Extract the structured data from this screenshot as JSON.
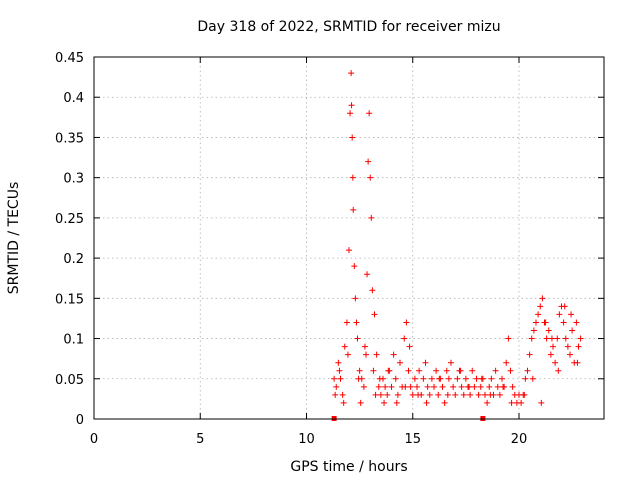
{
  "chart_data": {
    "type": "scatter",
    "title": "Day 318 of 2022, SRMTID for receiver mizu",
    "xlabel": "GPS time / hours",
    "ylabel": "SRMTID / TECUs",
    "xlim": [
      0,
      24
    ],
    "ylim": [
      0,
      0.45
    ],
    "x_ticks": [
      0,
      5,
      10,
      15,
      20
    ],
    "x_tick_labels": [
      "0",
      "5",
      "10",
      "15",
      "20"
    ],
    "y_ticks": [
      0,
      0.05,
      0.1,
      0.15,
      0.2,
      0.25,
      0.3,
      0.35,
      0.4,
      0.45
    ],
    "y_tick_labels": [
      "0",
      "0.05",
      "0.1",
      "0.15",
      "0.2",
      "0.25",
      "0.3",
      "0.35",
      "0.4",
      "0.45"
    ],
    "grid": true,
    "marker": "plus",
    "color": "#ff0000",
    "series": [
      {
        "name": "SRMTID",
        "x": [
          11.3,
          11.4,
          11.5,
          11.6,
          11.7,
          11.8,
          11.9,
          12.0,
          12.05,
          12.1,
          12.12,
          12.15,
          12.18,
          12.2,
          12.25,
          12.3,
          12.35,
          12.4,
          12.5,
          12.6,
          12.7,
          12.8,
          12.85,
          12.9,
          12.95,
          13.0,
          13.05,
          13.1,
          13.2,
          13.3,
          13.4,
          13.5,
          13.6,
          13.7,
          13.8,
          13.9,
          14.0,
          14.1,
          14.2,
          14.3,
          14.4,
          14.5,
          14.6,
          14.7,
          14.8,
          14.9,
          15.0,
          15.1,
          15.2,
          15.3,
          15.4,
          15.5,
          15.6,
          15.7,
          15.8,
          15.9,
          16.0,
          16.1,
          16.2,
          16.3,
          16.4,
          16.5,
          16.6,
          16.7,
          16.8,
          16.9,
          17.0,
          17.1,
          17.2,
          17.3,
          17.4,
          17.5,
          17.6,
          17.7,
          17.8,
          17.9,
          18.0,
          18.1,
          18.2,
          18.3,
          18.4,
          18.5,
          18.6,
          18.7,
          18.8,
          18.9,
          19.0,
          19.1,
          19.2,
          19.3,
          19.4,
          19.5,
          19.6,
          19.7,
          19.8,
          19.9,
          20.0,
          20.1,
          20.2,
          20.3,
          20.4,
          20.5,
          20.6,
          20.7,
          20.8,
          20.9,
          21.0,
          21.1,
          21.2,
          21.3,
          21.4,
          21.5,
          21.6,
          21.7,
          21.8,
          21.9,
          22.0,
          22.1,
          22.2,
          22.3,
          22.4,
          22.5,
          22.6,
          22.7,
          22.8,
          22.9,
          11.35,
          11.55,
          11.75,
          11.95,
          12.45,
          12.55,
          12.75,
          13.15,
          13.25,
          13.45,
          13.65,
          13.85,
          14.25,
          14.65,
          14.85,
          15.25,
          15.65,
          16.25,
          16.65,
          17.25,
          17.65,
          18.25,
          18.65,
          19.25,
          19.65,
          20.25,
          20.65,
          21.05,
          21.25,
          21.55,
          21.85,
          22.15,
          22.45,
          22.75
        ],
        "y": [
          0.05,
          0.04,
          0.07,
          0.05,
          0.03,
          0.09,
          0.12,
          0.21,
          0.38,
          0.43,
          0.39,
          0.35,
          0.3,
          0.26,
          0.19,
          0.15,
          0.12,
          0.1,
          0.06,
          0.05,
          0.04,
          0.08,
          0.18,
          0.32,
          0.38,
          0.3,
          0.25,
          0.16,
          0.13,
          0.08,
          0.04,
          0.03,
          0.05,
          0.04,
          0.03,
          0.06,
          0.04,
          0.08,
          0.05,
          0.03,
          0.07,
          0.04,
          0.1,
          0.12,
          0.06,
          0.04,
          0.03,
          0.05,
          0.04,
          0.06,
          0.03,
          0.05,
          0.07,
          0.04,
          0.03,
          0.05,
          0.04,
          0.06,
          0.03,
          0.05,
          0.04,
          0.02,
          0.06,
          0.05,
          0.07,
          0.04,
          0.03,
          0.05,
          0.06,
          0.04,
          0.03,
          0.05,
          0.04,
          0.03,
          0.06,
          0.04,
          0.05,
          0.03,
          0.04,
          0.05,
          0.03,
          0.02,
          0.04,
          0.05,
          0.03,
          0.06,
          0.04,
          0.03,
          0.05,
          0.04,
          0.07,
          0.1,
          0.06,
          0.04,
          0.03,
          0.02,
          0.03,
          0.02,
          0.03,
          0.05,
          0.06,
          0.08,
          0.1,
          0.11,
          0.12,
          0.13,
          0.14,
          0.15,
          0.12,
          0.1,
          0.11,
          0.08,
          0.09,
          0.07,
          0.1,
          0.13,
          0.14,
          0.12,
          0.1,
          0.09,
          0.08,
          0.11,
          0.07,
          0.12,
          0.09,
          0.1,
          0.03,
          0.06,
          0.02,
          0.08,
          0.05,
          0.02,
          0.09,
          0.06,
          0.03,
          0.05,
          0.02,
          0.06,
          0.02,
          0.04,
          0.09,
          0.03,
          0.02,
          0.05,
          0.03,
          0.06,
          0.04,
          0.05,
          0.03,
          0.04,
          0.02,
          0.03,
          0.05,
          0.02,
          0.12,
          0.1,
          0.06,
          0.14,
          0.13,
          0.07
        ],
        "gap_markers_x": [
          11.3,
          18.3
        ]
      }
    ]
  }
}
